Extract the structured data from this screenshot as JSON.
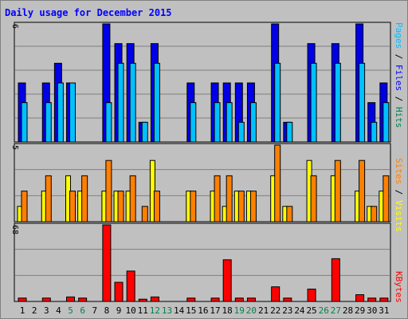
{
  "chart_data": {
    "type": "bar",
    "title": "Daily usage for December 2015",
    "categories": [
      "1",
      "2",
      "3",
      "4",
      "5",
      "6",
      "7",
      "8",
      "9",
      "10",
      "11",
      "12",
      "13",
      "14",
      "15",
      "16",
      "17",
      "18",
      "19",
      "20",
      "21",
      "22",
      "23",
      "24",
      "25",
      "26",
      "27",
      "28",
      "29",
      "30",
      "31"
    ],
    "weekend_days": [
      "5",
      "6",
      "12",
      "13",
      "19",
      "20",
      "26",
      "27"
    ],
    "panels": [
      {
        "id": "hits-files-pages",
        "ymax_label": "6",
        "ylim": [
          0,
          6
        ],
        "grid": true,
        "legend": [
          "Pages",
          "Files",
          "Hits"
        ],
        "series": [
          {
            "name": "Hits",
            "color": "#0000e6",
            "values": [
              3,
              0,
              3,
              4,
              3,
              0,
              0,
              6,
              5,
              5,
              1,
              5,
              0,
              0,
              3,
              0,
              3,
              3,
              3,
              3,
              0,
              6,
              1,
              0,
              5,
              0,
              5,
              0,
              6,
              2,
              3
            ]
          },
          {
            "name": "Files",
            "color": "#00c0ff",
            "values": [
              2,
              0,
              2,
              3,
              3,
              0,
              0,
              2,
              4,
              4,
              1,
              4,
              0,
              0,
              2,
              0,
              2,
              2,
              1,
              2,
              0,
              4,
              1,
              0,
              4,
              0,
              4,
              0,
              4,
              1,
              2
            ]
          },
          {
            "name": "Pages",
            "color": "#00c0ff",
            "values": [
              0,
              0,
              0,
              0,
              0,
              0,
              0,
              0,
              0,
              0,
              0,
              0,
              0,
              0,
              0,
              0,
              0,
              0,
              0,
              0,
              0,
              0,
              0,
              0,
              0,
              0,
              0,
              0,
              0,
              0,
              0
            ]
          }
        ]
      },
      {
        "id": "visits-sites",
        "ymax_label": "5",
        "ylim": [
          0,
          5
        ],
        "grid": true,
        "legend": [
          "Sites",
          "Visits"
        ],
        "series": [
          {
            "name": "Visits",
            "color": "#ffff00",
            "values": [
              1,
              0,
              2,
              0,
              3,
              2,
              0,
              2,
              2,
              2,
              0,
              4,
              0,
              0,
              2,
              0,
              2,
              1,
              2,
              2,
              0,
              3,
              1,
              0,
              4,
              0,
              3,
              0,
              2,
              1,
              2
            ]
          },
          {
            "name": "Sites",
            "color": "#ff8000",
            "values": [
              2,
              0,
              3,
              0,
              2,
              3,
              0,
              4,
              2,
              3,
              1,
              2,
              0,
              0,
              2,
              0,
              3,
              3,
              2,
              2,
              0,
              5,
              1,
              0,
              3,
              0,
              4,
              0,
              4,
              1,
              3
            ]
          }
        ]
      },
      {
        "id": "kbytes",
        "ymax_label": "68",
        "ylim": [
          0,
          68
        ],
        "grid": true,
        "legend": [
          "KBytes"
        ],
        "series": [
          {
            "name": "KBytes",
            "color": "#ff0000",
            "values": [
              3,
              0,
              3,
              0,
              4,
              3,
              0,
              68,
              17,
              27,
              2,
              4,
              0,
              0,
              3,
              0,
              3,
              37,
              3,
              3,
              0,
              13,
              3,
              0,
              11,
              0,
              38,
              0,
              6,
              3,
              3
            ]
          }
        ]
      }
    ],
    "legend_labels": {
      "pages": "Pages",
      "files": "Files",
      "hits": "Hits",
      "sites": "Sites",
      "visits": "Visits",
      "kbytes": "KBytes",
      "sep": " / "
    },
    "colors": {
      "background": "#c0c0c0",
      "title": "#0000ff",
      "axis_text": "#000000",
      "weekend_text": "#00804c",
      "pages_legend": "#00c0ff",
      "files_legend": "#0000ff",
      "hits_legend": "#00804c",
      "sites_legend": "#ff8000",
      "visits_legend": "#ffff00",
      "kbytes_legend": "#ff0000"
    }
  }
}
